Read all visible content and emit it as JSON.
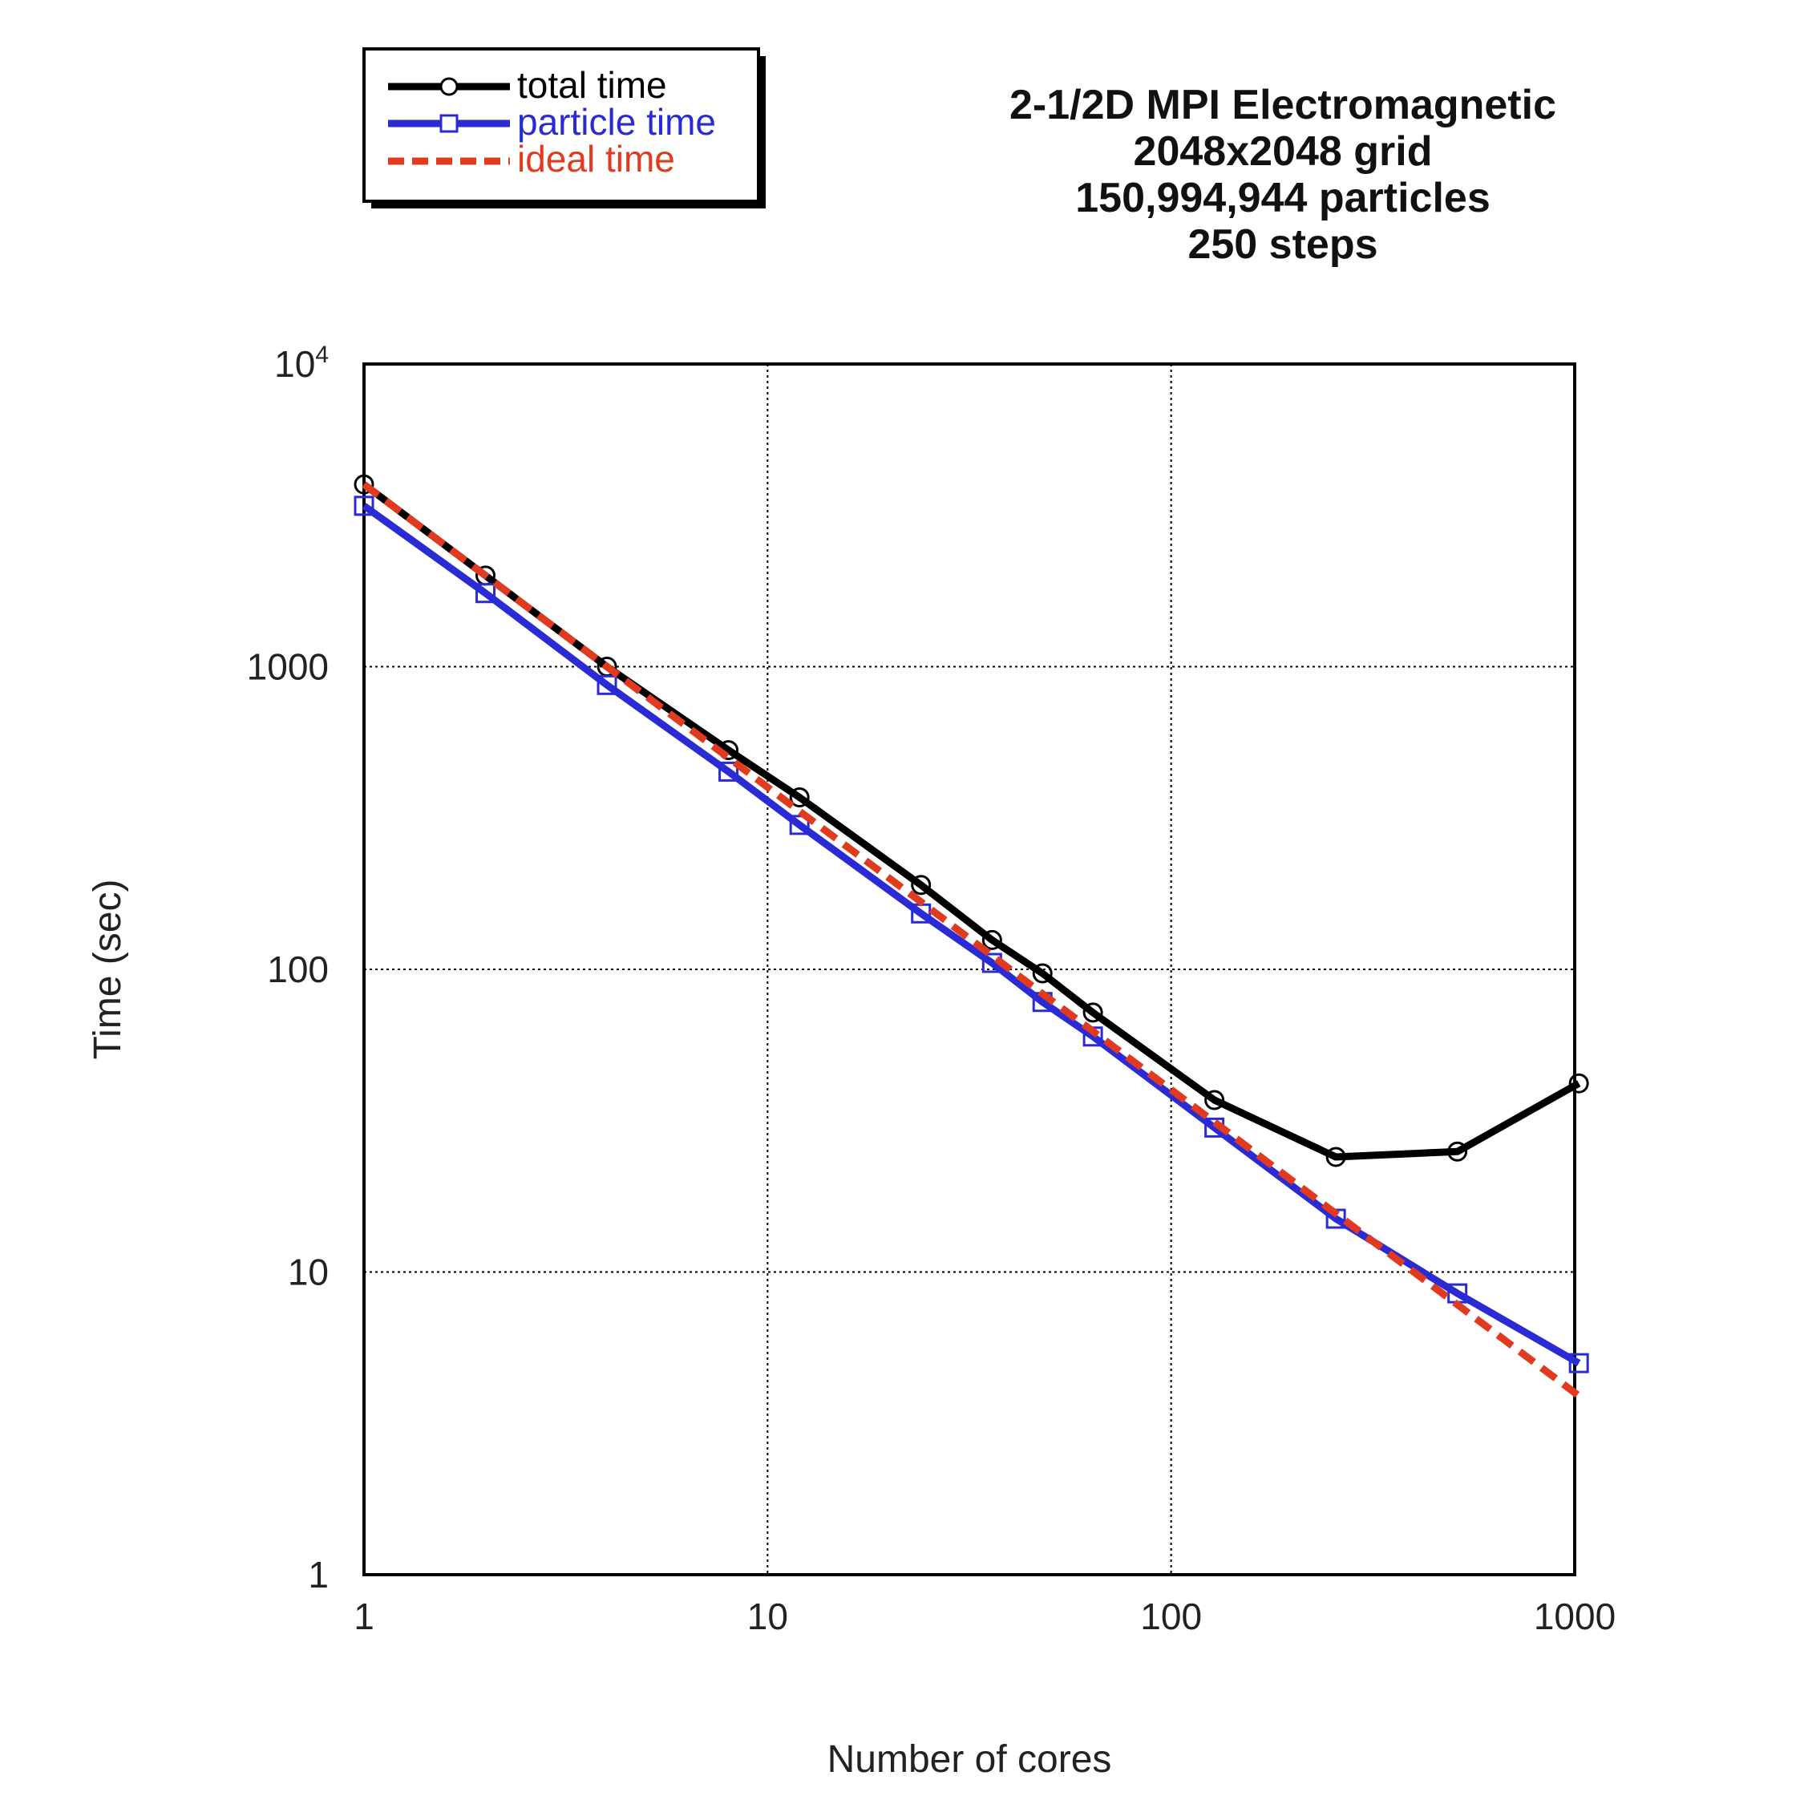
{
  "chart_data": {
    "type": "line",
    "title_lines": [
      "2-1/2D MPI Electromagnetic",
      "2048x2048 grid",
      "150,994,944 particles",
      "250 steps"
    ],
    "xlabel": "Number of cores",
    "ylabel": "Time (sec)",
    "xscale": "log",
    "yscale": "log",
    "xlim": [
      1,
      1000
    ],
    "ylim": [
      1,
      10000
    ],
    "xticks": [
      {
        "value": 1,
        "label": "1"
      },
      {
        "value": 10,
        "label": "10"
      },
      {
        "value": 100,
        "label": "100"
      },
      {
        "value": 1000,
        "label": "1000"
      }
    ],
    "yticks": [
      {
        "value": 1,
        "label": "1",
        "exp": ""
      },
      {
        "value": 10,
        "label": "10",
        "exp": ""
      },
      {
        "value": 100,
        "label": "100",
        "exp": ""
      },
      {
        "value": 1000,
        "label": "1000",
        "exp": ""
      },
      {
        "value": 10000,
        "label": "10",
        "exp": "4"
      }
    ],
    "grid": true,
    "legend_position": "top-left",
    "series": [
      {
        "name": "total time",
        "color": "#000000",
        "marker": "circle",
        "style": "solid",
        "x": [
          1,
          2,
          4,
          8,
          12,
          24,
          36,
          48,
          64,
          128,
          256,
          512,
          1024
        ],
        "y": [
          4000,
          2000,
          1000,
          530,
          370,
          190,
          125,
          97,
          72,
          37,
          24,
          25,
          42
        ]
      },
      {
        "name": "particle time",
        "color": "#2b2bd6",
        "marker": "square",
        "style": "solid",
        "x": [
          1,
          2,
          4,
          8,
          12,
          24,
          36,
          48,
          64,
          128,
          256,
          512,
          1024
        ],
        "y": [
          3400,
          1750,
          870,
          450,
          300,
          153,
          105,
          78,
          60,
          30,
          15,
          8.5,
          5
        ]
      },
      {
        "name": "ideal time",
        "color": "#e23a1e",
        "marker": "none",
        "style": "dashed",
        "x": [
          1,
          2,
          4,
          8,
          12,
          24,
          36,
          48,
          64,
          128,
          256,
          512,
          1024
        ],
        "y": [
          4000,
          2000,
          1000,
          500,
          333,
          167,
          111,
          83,
          62.5,
          31.3,
          15.6,
          7.8,
          3.9
        ]
      }
    ]
  }
}
